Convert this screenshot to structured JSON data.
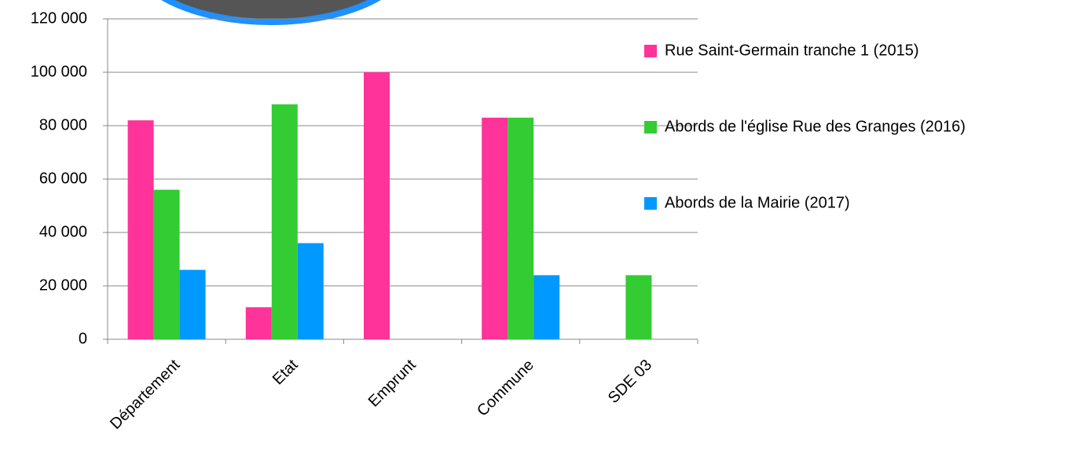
{
  "chart_data": {
    "type": "bar",
    "categories": [
      "Département",
      "Etat",
      "Emprunt",
      "Commune",
      "SDE 03"
    ],
    "series": [
      {
        "name": "Rue Saint-Germain tranche 1 (2015)",
        "color": "#ff3399",
        "values": [
          82000,
          12000,
          100000,
          83000,
          null
        ]
      },
      {
        "name": "Abords de l'église Rue des Granges (2016)",
        "color": "#33cc33",
        "values": [
          56000,
          88000,
          null,
          83000,
          24000
        ]
      },
      {
        "name": "Abords de la Mairie (2017)",
        "color": "#0099ff",
        "values": [
          26000,
          36000,
          null,
          24000,
          null
        ]
      }
    ],
    "ylim": [
      0,
      120000
    ],
    "yticks": [
      0,
      {
        "value": 20000,
        "label": "20 000"
      },
      {
        "value": 40000,
        "label": "40 000"
      },
      {
        "value": 60000,
        "label": "60 000"
      },
      {
        "value": 80000,
        "label": "80 000"
      },
      {
        "value": 100000,
        "label": "100 000"
      },
      {
        "value": 120000,
        "label": "120 000"
      }
    ],
    "grid": true,
    "legend": "right"
  }
}
